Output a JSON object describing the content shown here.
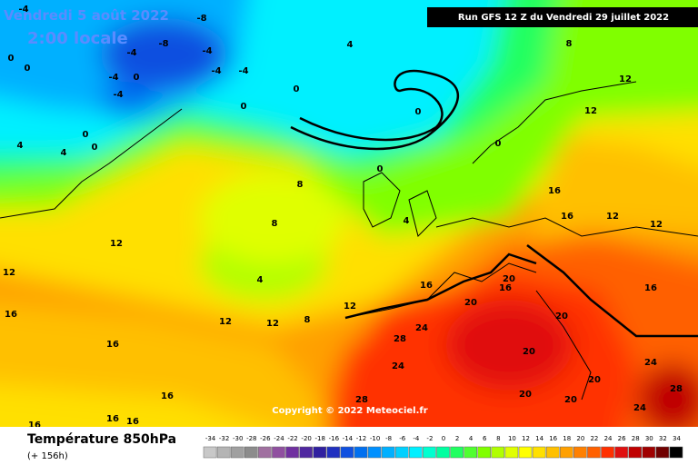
{
  "header": {
    "date": "Vendredi 5 août 2022",
    "time": "2:00 locale",
    "run": "Run GFS 12 Z du Vendredi 29 juillet 2022"
  },
  "map": {
    "contour_labels": [
      -4,
      -8,
      -8,
      -4,
      -4,
      -4,
      -4,
      -4,
      -4,
      0,
      0,
      0,
      4,
      8,
      0,
      0,
      0,
      0,
      0,
      12,
      12,
      16,
      16,
      12,
      12,
      8,
      8,
      12,
      12,
      4,
      4,
      16,
      12,
      12,
      12,
      8,
      16,
      16,
      16,
      16,
      16,
      16,
      20,
      20,
      20,
      20,
      20,
      20,
      20,
      24,
      28,
      24,
      24,
      24,
      28,
      28,
      16,
      16,
      4,
      4,
      0,
      0
    ],
    "copyright": "Copyright © 2022 Meteociel.fr"
  },
  "footer": {
    "title": "Température 850hPa",
    "lead": "(+ 156h)"
  },
  "scale": {
    "values": [
      -34,
      -32,
      -30,
      -28,
      -26,
      -24,
      -22,
      -20,
      -18,
      -16,
      -14,
      -12,
      -10,
      -8,
      -6,
      -4,
      -2,
      0,
      2,
      4,
      6,
      8,
      10,
      12,
      14,
      16,
      18,
      20,
      22,
      24,
      26,
      28,
      30,
      32,
      34
    ],
    "colors": [
      "#c8c8c8",
      "#b4b4b4",
      "#a0a0a0",
      "#8c8c8c",
      "#a070a0",
      "#9050a0",
      "#7030a0",
      "#5028a0",
      "#3020a0",
      "#2030c0",
      "#1050e0",
      "#0070f0",
      "#0090ff",
      "#00b0ff",
      "#00d0ff",
      "#00f0ff",
      "#00ffd0",
      "#00ffa0",
      "#20ff60",
      "#50ff30",
      "#80ff00",
      "#b0ff00",
      "#e0ff00",
      "#ffff00",
      "#ffe000",
      "#ffc000",
      "#ffa000",
      "#ff8000",
      "#ff6000",
      "#ff3000",
      "#e01010",
      "#c00000",
      "#a00000",
      "#700000",
      "#000000"
    ]
  }
}
